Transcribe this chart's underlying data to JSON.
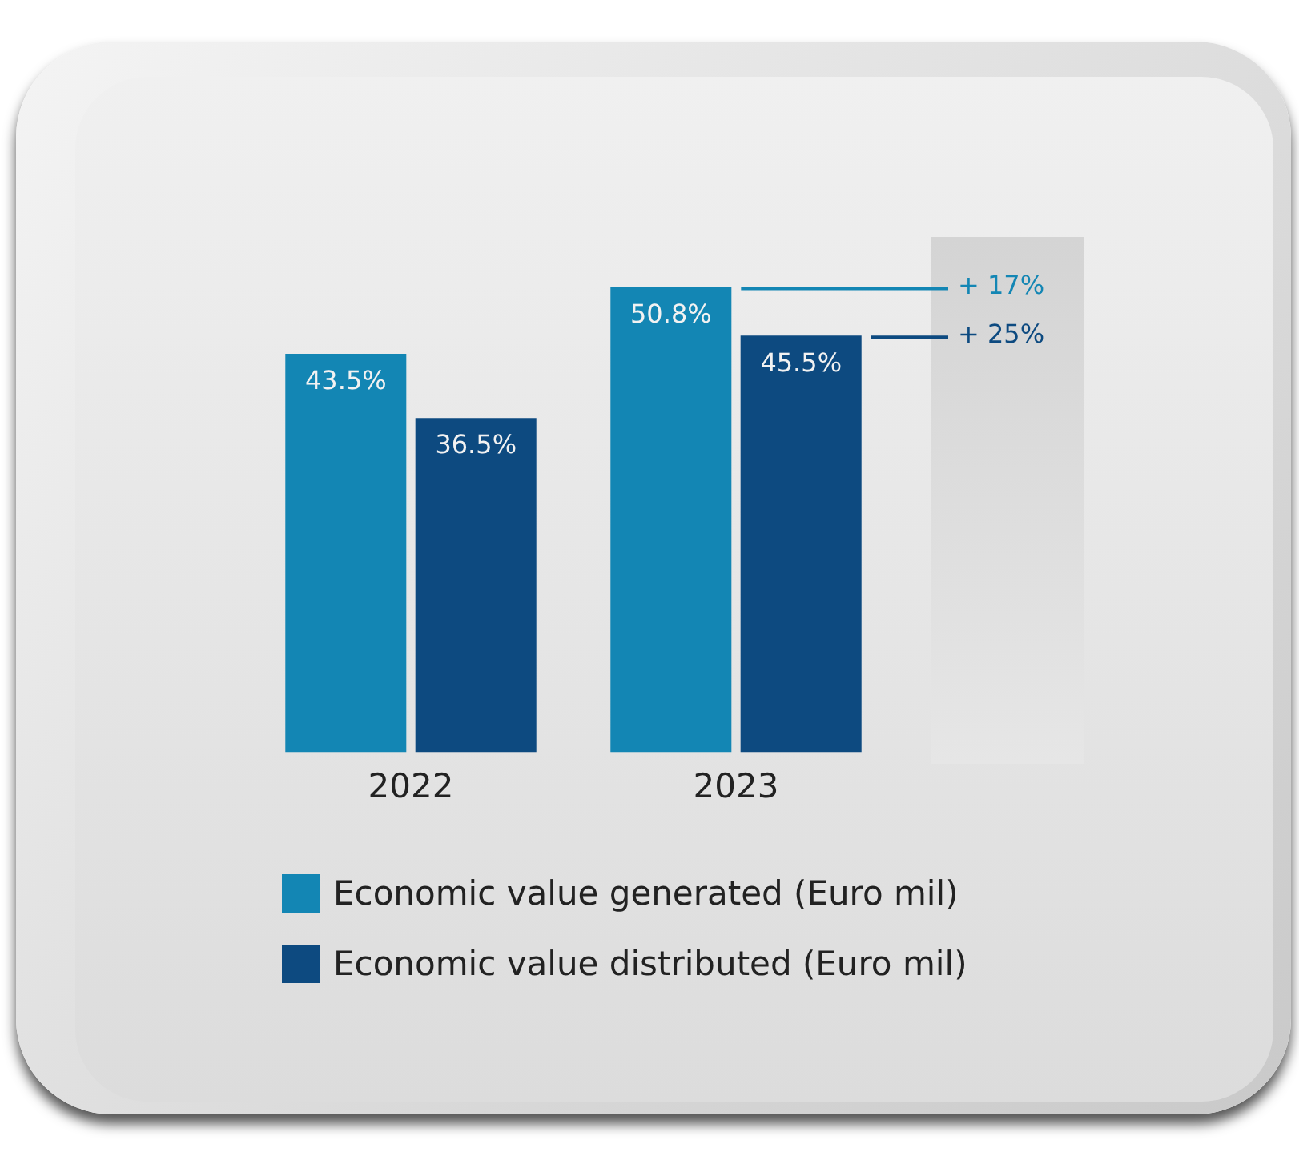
{
  "chart_data": {
    "type": "bar",
    "categories": [
      "2022",
      "2023"
    ],
    "series": [
      {
        "name": "Economic value generated (Euro mil)",
        "color": "#1386b4",
        "values": [
          43.5,
          50.8
        ],
        "value_labels": [
          "43.5%",
          "50.8%"
        ]
      },
      {
        "name": "Economic value distributed (Euro mil)",
        "color": "#0d4a80",
        "values": [
          36.5,
          45.5
        ],
        "value_labels": [
          "36.5%",
          "45.5%"
        ]
      }
    ],
    "annotations": [
      "+ 17%",
      "+ 25%"
    ],
    "legend": "bottom",
    "grid": false
  }
}
